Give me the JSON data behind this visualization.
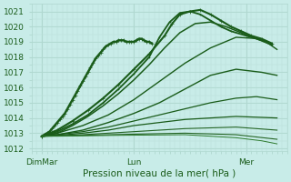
{
  "xlabel": "Pression niveau de la mer( hPa )",
  "bg_color": "#c8ece8",
  "grid_major_color": "#b0d8d0",
  "grid_minor_color": "#c0e4de",
  "line_color": "#1a5c1a",
  "ylim": [
    1011.8,
    1021.5
  ],
  "xlim": [
    0.0,
    100.0
  ],
  "yticks": [
    1012,
    1013,
    1014,
    1015,
    1016,
    1017,
    1018,
    1019,
    1020,
    1021
  ],
  "xtick_positions": [
    4,
    40,
    84
  ],
  "xtick_labels": [
    "DimMar",
    "Lun",
    "Mer"
  ],
  "lines": [
    {
      "x": [
        4,
        5,
        6,
        7,
        8,
        9,
        10,
        11,
        12,
        13,
        14,
        15,
        16,
        17,
        18,
        19,
        20,
        21,
        22,
        23,
        24,
        25,
        26,
        27,
        28,
        29,
        30,
        31,
        32,
        33,
        34,
        35,
        36,
        37,
        38,
        39,
        40,
        41,
        42,
        43,
        44,
        45,
        46,
        47
      ],
      "y": [
        1012.8,
        1012.9,
        1013.0,
        1013.1,
        1013.3,
        1013.5,
        1013.7,
        1013.9,
        1014.1,
        1014.3,
        1014.6,
        1014.9,
        1015.2,
        1015.5,
        1015.8,
        1016.1,
        1016.4,
        1016.7,
        1017.0,
        1017.3,
        1017.6,
        1017.9,
        1018.1,
        1018.3,
        1018.5,
        1018.7,
        1018.8,
        1018.9,
        1019.0,
        1019.0,
        1019.1,
        1019.1,
        1019.1,
        1019.0,
        1019.0,
        1019.0,
        1019.0,
        1019.1,
        1019.2,
        1019.2,
        1019.1,
        1019.0,
        1019.0,
        1018.9
      ],
      "lw": 1.8,
      "marker": "+",
      "ms": 3,
      "color": "#1a5c1a"
    },
    {
      "x": [
        4,
        10,
        16,
        22,
        28,
        34,
        40,
        46,
        52,
        55,
        58,
        62,
        66,
        70,
        74,
        78,
        82,
        86,
        90,
        94
      ],
      "y": [
        1012.8,
        1013.2,
        1013.8,
        1014.5,
        1015.3,
        1016.2,
        1017.2,
        1018.2,
        1019.4,
        1020.2,
        1020.8,
        1021.0,
        1021.1,
        1020.8,
        1020.4,
        1020.0,
        1019.7,
        1019.4,
        1019.2,
        1018.9
      ],
      "lw": 1.5,
      "marker": "+",
      "ms": 3,
      "color": "#1a5c1a"
    },
    {
      "x": [
        4,
        10,
        16,
        22,
        28,
        34,
        40,
        46,
        50,
        54,
        58,
        62,
        66,
        70,
        74,
        78,
        84,
        90,
        94
      ],
      "y": [
        1012.8,
        1013.1,
        1013.6,
        1014.2,
        1015.0,
        1015.9,
        1016.9,
        1018.0,
        1019.3,
        1020.3,
        1020.9,
        1021.0,
        1020.8,
        1020.4,
        1020.0,
        1019.7,
        1019.4,
        1019.1,
        1018.8
      ],
      "lw": 1.3,
      "marker": "+",
      "ms": 2,
      "color": "#1a5c1a"
    },
    {
      "x": [
        4,
        10,
        16,
        22,
        28,
        34,
        40,
        46,
        52,
        58,
        64,
        70,
        76,
        82,
        88,
        94
      ],
      "y": [
        1012.8,
        1013.0,
        1013.5,
        1014.1,
        1014.8,
        1015.6,
        1016.5,
        1017.5,
        1018.6,
        1019.6,
        1020.2,
        1020.3,
        1020.0,
        1019.6,
        1019.2,
        1018.8
      ],
      "lw": 1.1,
      "marker": null,
      "ms": 0,
      "color": "#1a5c1a"
    },
    {
      "x": [
        4,
        10,
        20,
        30,
        40,
        50,
        60,
        70,
        80,
        90,
        96
      ],
      "y": [
        1012.8,
        1013.0,
        1013.5,
        1014.2,
        1015.2,
        1016.4,
        1017.6,
        1018.6,
        1019.3,
        1019.2,
        1018.5
      ],
      "lw": 1.0,
      "marker": null,
      "ms": 0,
      "color": "#1a5c1a"
    },
    {
      "x": [
        4,
        10,
        20,
        30,
        40,
        50,
        60,
        70,
        80,
        90,
        96
      ],
      "y": [
        1012.8,
        1012.9,
        1013.2,
        1013.7,
        1014.3,
        1015.0,
        1015.9,
        1016.8,
        1017.2,
        1017.0,
        1016.8
      ],
      "lw": 1.0,
      "marker": null,
      "ms": 0,
      "color": "#1a5c1a"
    },
    {
      "x": [
        4,
        10,
        20,
        30,
        40,
        50,
        60,
        70,
        80,
        88,
        96
      ],
      "y": [
        1012.8,
        1012.9,
        1013.1,
        1013.4,
        1013.8,
        1014.2,
        1014.6,
        1015.0,
        1015.3,
        1015.4,
        1015.2
      ],
      "lw": 0.9,
      "marker": null,
      "ms": 0,
      "color": "#1a5c1a"
    },
    {
      "x": [
        4,
        10,
        20,
        30,
        40,
        60,
        80,
        96
      ],
      "y": [
        1012.8,
        1012.85,
        1013.0,
        1013.2,
        1013.5,
        1013.9,
        1014.1,
        1014.0
      ],
      "lw": 0.9,
      "marker": null,
      "ms": 0,
      "color": "#1a5c1a"
    },
    {
      "x": [
        4,
        10,
        20,
        30,
        40,
        60,
        80,
        96
      ],
      "y": [
        1012.8,
        1012.82,
        1012.9,
        1013.0,
        1013.1,
        1013.3,
        1013.4,
        1013.2
      ],
      "lw": 0.8,
      "marker": null,
      "ms": 0,
      "color": "#266626"
    },
    {
      "x": [
        4,
        10,
        30,
        60,
        80,
        96
      ],
      "y": [
        1012.8,
        1012.82,
        1012.9,
        1013.0,
        1012.9,
        1012.6
      ],
      "lw": 0.8,
      "marker": null,
      "ms": 0,
      "color": "#266626"
    },
    {
      "x": [
        4,
        10,
        30,
        60,
        80,
        90,
        96
      ],
      "y": [
        1012.8,
        1012.8,
        1012.85,
        1012.9,
        1012.7,
        1012.5,
        1012.3
      ],
      "lw": 0.7,
      "marker": null,
      "ms": 0,
      "color": "#2d7a2d"
    }
  ]
}
